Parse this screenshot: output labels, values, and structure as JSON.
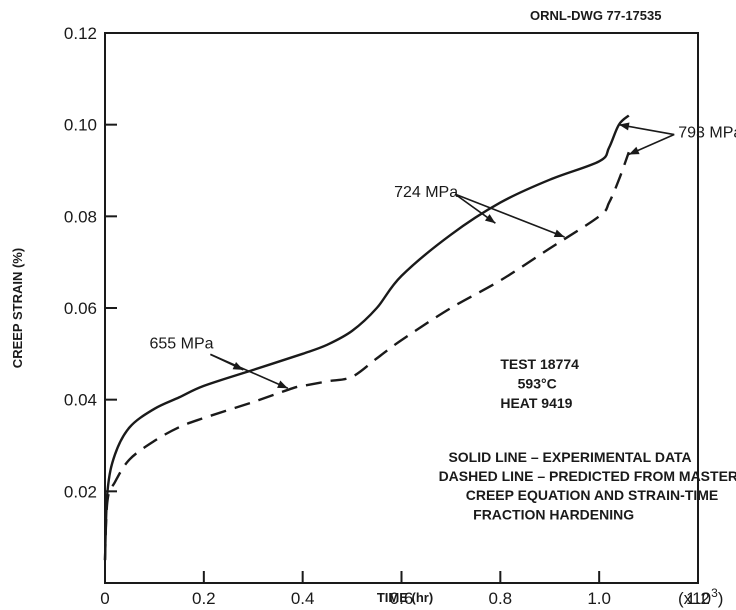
{
  "drawing_number": "ORNL-DWG 77-17535",
  "chart_data": {
    "type": "line",
    "xlabel": "TIME (hr)",
    "ylabel": "CREEP STRAIN (%)",
    "x_multiplier": "(x10",
    "x_multiplier_exp": "3",
    "xlim": [
      0,
      1.2
    ],
    "ylim": [
      0,
      0.12
    ],
    "x_ticks": [
      {
        "value": 0,
        "label": "0"
      },
      {
        "value": 0.2,
        "label": "0.2"
      },
      {
        "value": 0.4,
        "label": "0.4"
      },
      {
        "value": 0.6,
        "label": "0.6"
      },
      {
        "value": 0.8,
        "label": "0.8"
      },
      {
        "value": 1.0,
        "label": "1.0"
      },
      {
        "value": 1.2,
        "label": "1.2"
      }
    ],
    "y_ticks": [
      {
        "value": 0.02,
        "label": "0.02"
      },
      {
        "value": 0.04,
        "label": "0.04"
      },
      {
        "value": 0.06,
        "label": "0.06"
      },
      {
        "value": 0.08,
        "label": "0.08"
      },
      {
        "value": 0.1,
        "label": "0.10"
      },
      {
        "value": 0.12,
        "label": "0.12"
      }
    ],
    "series": [
      {
        "style": "solid",
        "x": [
          0,
          0.005,
          0.02,
          0.05,
          0.1,
          0.15,
          0.2,
          0.3,
          0.4,
          0.45,
          0.5,
          0.55,
          0.6,
          0.7,
          0.8,
          0.9,
          1.0,
          1.02,
          1.04,
          1.06
        ],
        "y": [
          0.005,
          0.02,
          0.028,
          0.034,
          0.038,
          0.0405,
          0.043,
          0.0465,
          0.05,
          0.052,
          0.055,
          0.06,
          0.067,
          0.076,
          0.083,
          0.088,
          0.092,
          0.095,
          0.1,
          0.102
        ]
      },
      {
        "style": "dashed",
        "x": [
          0,
          0.005,
          0.02,
          0.05,
          0.1,
          0.15,
          0.2,
          0.3,
          0.38,
          0.4,
          0.45,
          0.5,
          0.55,
          0.6,
          0.7,
          0.8,
          0.9,
          1.0,
          1.02,
          1.04,
          1.06
        ],
        "y": [
          0.005,
          0.018,
          0.022,
          0.027,
          0.031,
          0.034,
          0.036,
          0.0395,
          0.0425,
          0.043,
          0.044,
          0.045,
          0.049,
          0.053,
          0.06,
          0.066,
          0.073,
          0.08,
          0.083,
          0.088,
          0.094
        ]
      }
    ],
    "annotations": [
      {
        "text": "655 MPa",
        "at": [
          0.09,
          0.0525
        ],
        "arrows_to": [
          [
            0.28,
            0.0465
          ],
          [
            0.37,
            0.0425
          ]
        ]
      },
      {
        "text": "724 MPa",
        "at": [
          0.585,
          0.0855
        ],
        "arrows_to": [
          [
            0.79,
            0.0785
          ],
          [
            0.93,
            0.0755
          ]
        ]
      },
      {
        "text": "793 MPa",
        "at": [
          1.16,
          0.0985
        ],
        "arrows_to": [
          [
            1.04,
            0.1
          ],
          [
            1.06,
            0.0935
          ]
        ]
      }
    ],
    "notes": [
      {
        "text": "TEST 18774",
        "at": [
          0.8,
          0.0478
        ]
      },
      {
        "text": "593°C",
        "at": [
          0.835,
          0.0435
        ]
      },
      {
        "text": "HEAT 9419",
        "at": [
          0.8,
          0.0393
        ]
      },
      {
        "text": "SOLID LINE – EXPERIMENTAL DATA",
        "at": [
          0.695,
          0.0275
        ]
      },
      {
        "text": "DASHED LINE – PREDICTED FROM MASTER",
        "at": [
          0.675,
          0.0233
        ]
      },
      {
        "text": "CREEP EQUATION AND STRAIN-TIME",
        "at": [
          0.73,
          0.0192
        ]
      },
      {
        "text": "FRACTION HARDENING",
        "at": [
          0.745,
          0.015
        ]
      }
    ]
  }
}
